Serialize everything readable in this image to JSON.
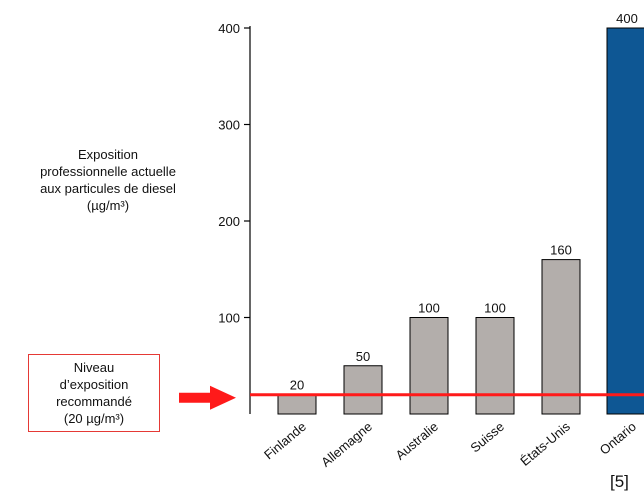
{
  "chart_data": {
    "type": "bar",
    "categories": [
      "Finlande",
      "Allemagne",
      "Australie",
      "Suisse",
      "États-Unis",
      "Ontario"
    ],
    "values": [
      20,
      50,
      100,
      100,
      160,
      400
    ],
    "value_labels": [
      "20",
      "50",
      "100",
      "100",
      "160",
      "400"
    ],
    "ylabel_lines": [
      "Exposition",
      "professionnelle actuelle",
      "aux particules de diesel",
      "(µg/m³)"
    ],
    "ylim": [
      0,
      400
    ],
    "yticks": [
      100,
      200,
      300,
      400
    ],
    "ytick_labels": [
      "100",
      "200",
      "300",
      "400"
    ],
    "grid": false,
    "bar_color": "#b3aeab",
    "highlight_category": "Ontario",
    "highlight_color": "#0e5794",
    "reference_line": {
      "value": 20,
      "color": "#ff1a1a",
      "label_lines": [
        "Niveau",
        "d’exposition",
        "recommandé",
        "(20 µg/m³)"
      ]
    }
  },
  "source_ref": "[5]"
}
